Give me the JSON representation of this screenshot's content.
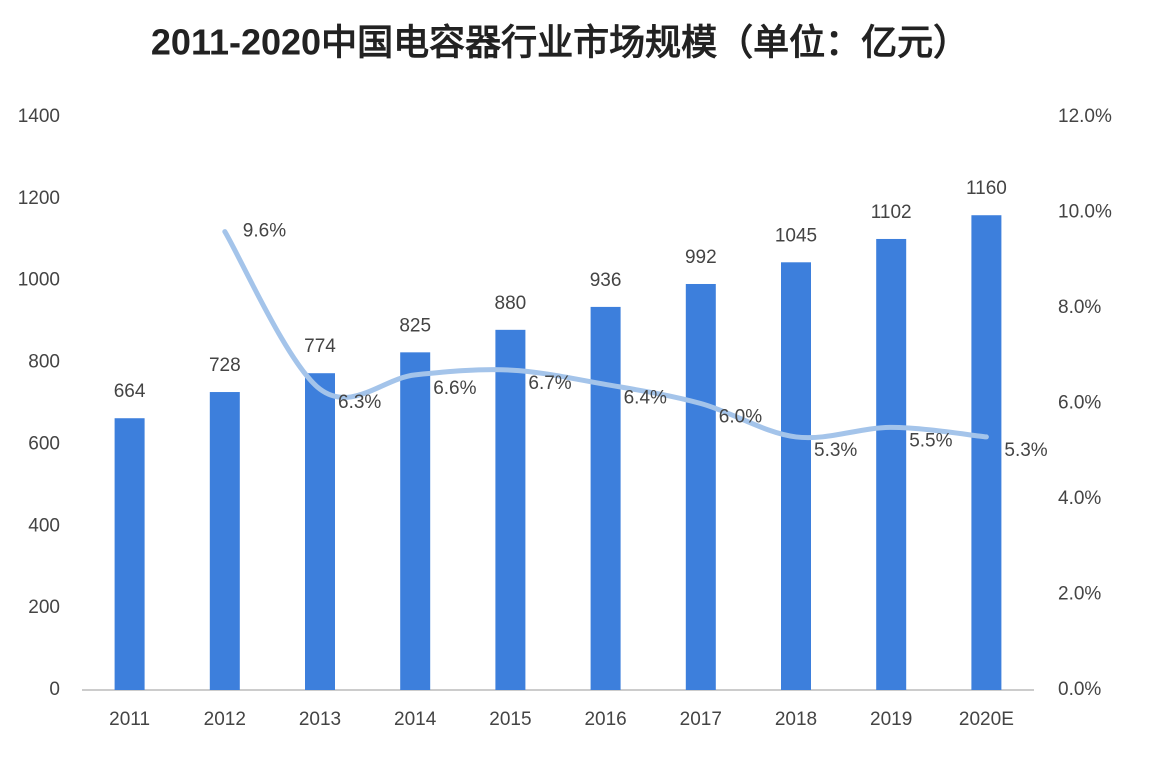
{
  "chart_data": {
    "type": "bar-line",
    "title": "2011-2020中国电容器行业市场规模（单位：亿元）",
    "categories": [
      "2011",
      "2012",
      "2013",
      "2014",
      "2015",
      "2016",
      "2017",
      "2018",
      "2019",
      "2020E"
    ],
    "series": [
      {
        "type": "bar",
        "color": "#3d7fdc",
        "values": [
          664,
          728,
          774,
          825,
          880,
          936,
          992,
          1045,
          1102,
          1160
        ]
      },
      {
        "type": "line",
        "axis": "y2",
        "color": "#a4c4ea",
        "values": [
          null,
          9.6,
          6.3,
          6.6,
          6.7,
          6.4,
          6.0,
          5.3,
          5.5,
          5.3
        ],
        "value_labels": [
          null,
          "9.6%",
          "6.3%",
          "6.6%",
          "6.7%",
          "6.4%",
          "6.0%",
          "5.3%",
          "5.5%",
          "5.3%"
        ]
      }
    ],
    "ylim": [
      0,
      1400
    ],
    "yticks": [
      0,
      200,
      400,
      600,
      800,
      1000,
      1200,
      1400
    ],
    "y2lim": [
      0,
      12
    ],
    "y2ticks": [
      {
        "value": 0,
        "label": "0.0%"
      },
      {
        "value": 2,
        "label": "2.0%"
      },
      {
        "value": 4,
        "label": "4.0%"
      },
      {
        "value": 6,
        "label": "6.0%"
      },
      {
        "value": 8,
        "label": "8.0%"
      },
      {
        "value": 10,
        "label": "10.0%"
      },
      {
        "value": 12,
        "label": "12.0%"
      }
    ],
    "grid": false
  }
}
